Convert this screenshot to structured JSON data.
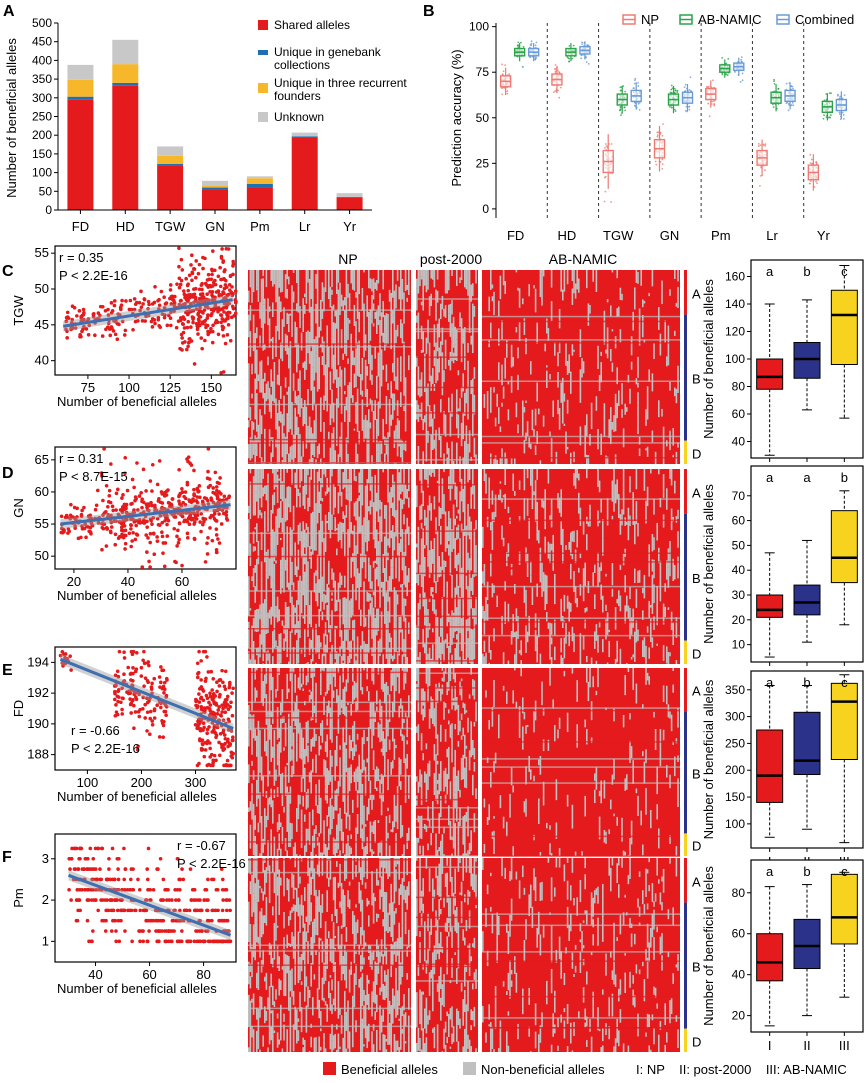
{
  "colors": {
    "shared": "#e41a1c",
    "genebank": "#1f6fb5",
    "founders": "#f6b72a",
    "unknown": "#c8c8c8",
    "np": "#ef7a72",
    "abnamic": "#2ba34a",
    "combined": "#6a9bd6",
    "beneficial": "#e41a1c",
    "nonbeneficial": "#c0c0c0",
    "box1": "#e41a1c",
    "box2": "#2a3389",
    "box3": "#f7d21e",
    "fitline": "#3f6fb0",
    "point": "#e41a1c"
  },
  "panel_labels": [
    "A",
    "B",
    "C",
    "D",
    "E",
    "F"
  ],
  "footer_legend": {
    "beneficial": "Beneficial alleles",
    "nonbeneficial": "Non-beneficial alleles",
    "groups": "I: NP    II: post-2000    III: AB-NAMIC"
  },
  "heatmap": {
    "headers": [
      "NP",
      "post-2000",
      "AB-NAMIC"
    ],
    "genomes": [
      "A",
      "B",
      "D"
    ]
  },
  "chart_data": [
    {
      "id": "A",
      "type": "bar",
      "stacked": true,
      "ylabel": "Number of beneficial alleles",
      "ylim": [
        0,
        500
      ],
      "yticks": [
        0,
        50,
        100,
        150,
        200,
        250,
        300,
        350,
        400,
        450,
        500
      ],
      "categories": [
        "FD",
        "HD",
        "TGW",
        "GN",
        "Pm",
        "Lr",
        "Yr"
      ],
      "legend_position": "top-right",
      "series": [
        {
          "name": "Shared alleles",
          "values": [
            295,
            332,
            120,
            55,
            60,
            195,
            33
          ]
        },
        {
          "name": "Unique in genebank collections",
          "values": [
            8,
            8,
            3,
            5,
            10,
            2,
            2
          ]
        },
        {
          "name": "Unique in three recurrent founders",
          "values": [
            45,
            50,
            22,
            6,
            15,
            0,
            0
          ]
        },
        {
          "name": "Unknown",
          "values": [
            40,
            65,
            25,
            12,
            5,
            10,
            10
          ]
        }
      ]
    },
    {
      "id": "B",
      "type": "box",
      "ylabel": "Prediction accuracy (%)",
      "ylim": [
        -5,
        102
      ],
      "yticks": [
        0,
        25,
        50,
        75,
        100
      ],
      "categories": [
        "FD",
        "HD",
        "TGW",
        "GN",
        "Pm",
        "Lr",
        "Yr"
      ],
      "legend_position": "top",
      "series": [
        {
          "name": "NP",
          "medians": [
            70,
            71,
            26,
            33,
            63,
            28,
            20
          ]
        },
        {
          "name": "AB-NAMIC",
          "medians": [
            86,
            86,
            60,
            60,
            77,
            61,
            56
          ]
        },
        {
          "name": "Combined",
          "medians": [
            86,
            87,
            62,
            61,
            78,
            62,
            57
          ]
        }
      ]
    },
    {
      "id": "C",
      "type": "scatter",
      "xlabel": "Number of beneficial alleles",
      "ylabel": "TGW",
      "xlim": [
        55,
        165
      ],
      "ylim": [
        38,
        56
      ],
      "xticks": [
        75,
        100,
        125,
        150
      ],
      "yticks": [
        40,
        45,
        50,
        55
      ],
      "r_label": "r = 0.35",
      "p_label": "P < 2.2E-16",
      "annotation_position": "top-left",
      "fit": [
        [
          60,
          44.8
        ],
        [
          163,
          48.5
        ]
      ],
      "clusters": [
        [
          60,
          165,
          44.5,
          48.5,
          260,
          3.0
        ],
        [
          130,
          140,
          40,
          50,
          70,
          2.2
        ],
        [
          140,
          165,
          44,
          53,
          160,
          2.0
        ]
      ]
    },
    {
      "id": "D",
      "type": "scatter",
      "xlabel": "Number of beneficial alleles",
      "ylabel": "GN",
      "xlim": [
        13,
        80
      ],
      "ylim": [
        48,
        67
      ],
      "xticks": [
        20,
        40,
        60
      ],
      "yticks": [
        50,
        55,
        60,
        65
      ],
      "r_label": "r = 0.31",
      "p_label": "P < 8.7E-15",
      "annotation_position": "top-left",
      "fit": [
        [
          15,
          55
        ],
        [
          78,
          58
        ]
      ],
      "clusters": [
        [
          15,
          78,
          54.5,
          58.5,
          300,
          2.5
        ],
        [
          30,
          75,
          50,
          62,
          200,
          2.0
        ]
      ]
    },
    {
      "id": "E",
      "type": "scatter",
      "xlabel": "Number of beneficial alleles",
      "ylabel": "FD",
      "xlim": [
        40,
        375
      ],
      "ylim": [
        187,
        195
      ],
      "xticks": [
        100,
        200,
        300
      ],
      "yticks": [
        188,
        190,
        192,
        194
      ],
      "r_label": "r = -0.66",
      "p_label": "P < 2.2E-16",
      "annotation_position": "bottom-left",
      "fit": [
        [
          50,
          194.2
        ],
        [
          370,
          189.7
        ]
      ],
      "clusters": [
        [
          50,
          70,
          193.5,
          194.5,
          15,
          0.6
        ],
        [
          150,
          250,
          190.5,
          194.5,
          150,
          1.0
        ],
        [
          300,
          370,
          188,
          193,
          220,
          1.1
        ]
      ]
    },
    {
      "id": "F",
      "type": "scatter",
      "xlabel": "Number of beneficial alleles",
      "ylabel": "Pm",
      "xlim": [
        25,
        92
      ],
      "ylim": [
        0.5,
        3.6
      ],
      "xticks": [
        40,
        60,
        80
      ],
      "yticks": [
        1,
        2,
        3
      ],
      "r_label": "r = -0.67",
      "p_label": "P < 2.2E-16",
      "annotation_position": "top-right",
      "fit": [
        [
          30,
          2.6
        ],
        [
          90,
          1.15
        ]
      ],
      "discrete_y": [
        1.0,
        1.25,
        1.5,
        1.75,
        2.0,
        2.25,
        2.5,
        2.75,
        3.0,
        3.25
      ],
      "clusters": [
        [
          30,
          90,
          1.0,
          3.3,
          450,
          1.0
        ]
      ]
    },
    {
      "id": "C-box",
      "type": "box",
      "ylabel": "Number of beneficial alleles",
      "ylim": [
        28,
        172
      ],
      "yticks": [
        40,
        60,
        80,
        100,
        120,
        140,
        160
      ],
      "categories": [
        "I",
        "II",
        "III"
      ],
      "letters": [
        "a",
        "b",
        "c"
      ],
      "boxes": [
        [
          30,
          78,
          87,
          100,
          140
        ],
        [
          63,
          86,
          100,
          112,
          143
        ],
        [
          57,
          96,
          132,
          150,
          168
        ]
      ]
    },
    {
      "id": "D-box",
      "type": "box",
      "ylabel": "Number of beneficial alleles",
      "ylim": [
        3,
        82
      ],
      "yticks": [
        10,
        20,
        30,
        40,
        50,
        60,
        70
      ],
      "categories": [
        "I",
        "II",
        "III"
      ],
      "letters": [
        "a",
        "a",
        "b"
      ],
      "boxes": [
        [
          5,
          21,
          24,
          30,
          47
        ],
        [
          11,
          22,
          27,
          34,
          52
        ],
        [
          18,
          35,
          45,
          64,
          72
        ]
      ]
    },
    {
      "id": "E-box",
      "type": "box",
      "ylabel": "Number of beneficial alleles",
      "ylim": [
        55,
        385
      ],
      "yticks": [
        100,
        150,
        200,
        250,
        300,
        350
      ],
      "categories": [
        "I",
        "II",
        "III"
      ],
      "letters": [
        "a",
        "b",
        "c"
      ],
      "boxes": [
        [
          75,
          140,
          190,
          275,
          358
        ],
        [
          90,
          192,
          218,
          308,
          358
        ],
        [
          65,
          220,
          328,
          362,
          378
        ]
      ]
    },
    {
      "id": "F-box",
      "type": "box",
      "ylabel": "Number of beneficial alleles",
      "ylim": [
        12,
        96
      ],
      "yticks": [
        20,
        40,
        60,
        80
      ],
      "categories": [
        "I",
        "II",
        "III"
      ],
      "letters": [
        "a",
        "b",
        "c"
      ],
      "boxes": [
        [
          15,
          37,
          46,
          60,
          83
        ],
        [
          20,
          43,
          54,
          67,
          84
        ],
        [
          29,
          55,
          68,
          89,
          90
        ]
      ]
    }
  ]
}
